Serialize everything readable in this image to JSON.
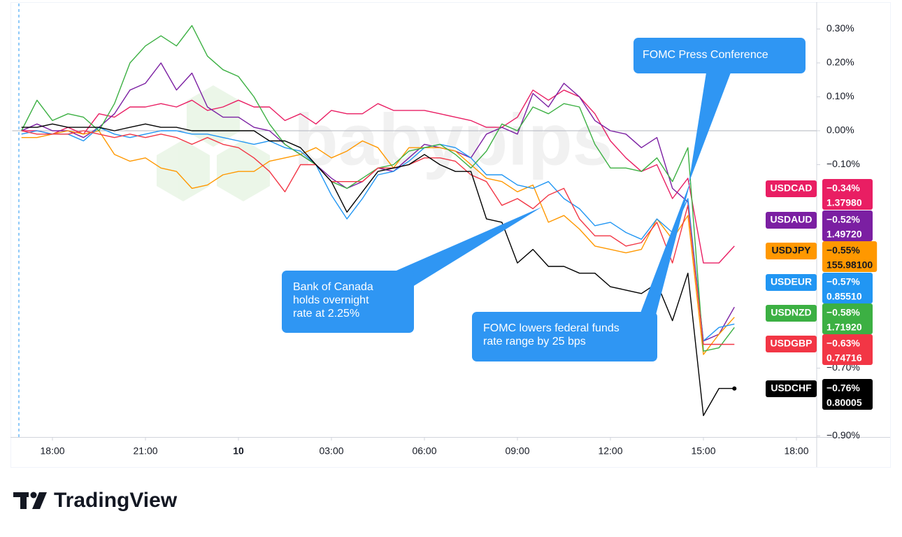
{
  "chart_data": {
    "type": "line",
    "watermark": "babypips",
    "brand": "TradingView",
    "x": [
      17,
      17.5,
      18,
      18.5,
      19,
      19.5,
      20,
      20.5,
      21,
      21.5,
      22,
      22.5,
      23,
      23.5,
      24,
      24.5,
      25,
      25.5,
      26,
      26.5,
      27,
      27.5,
      28,
      28.5,
      29,
      29.5,
      30,
      30.5,
      31,
      31.5,
      32,
      32.5,
      33,
      33.5,
      34,
      34.5,
      35,
      35.5,
      36,
      36.5,
      37,
      37.5,
      38,
      38.5,
      39,
      39.5,
      40
    ],
    "xlim": [
      16.7,
      42.65
    ],
    "xticks": [
      {
        "value": 18,
        "label": "18:00"
      },
      {
        "value": 21,
        "label": "21:00"
      },
      {
        "value": 24,
        "label": "10"
      },
      {
        "value": 27,
        "label": "03:00"
      },
      {
        "value": 30,
        "label": "06:00"
      },
      {
        "value": 33,
        "label": "09:00"
      },
      {
        "value": 36,
        "label": "12:00"
      },
      {
        "value": 39,
        "label": "15:00"
      },
      {
        "value": 42,
        "label": "18:00"
      }
    ],
    "ylim": [
      -0.9,
      0.37
    ],
    "yticks": [
      {
        "value": 0.3,
        "label": "0.30%"
      },
      {
        "value": 0.2,
        "label": "0.20%"
      },
      {
        "value": 0.1,
        "label": "0.10%"
      },
      {
        "value": 0,
        "label": "0.00%"
      },
      {
        "value": -0.1,
        "label": "−0.10%"
      },
      {
        "value": -0.7,
        "label": "−0.70%"
      },
      {
        "value": -0.9,
        "label": "−0.90%"
      }
    ],
    "baseline": 0,
    "series": [
      {
        "name": "USDCAD",
        "color": "#e91e63",
        "last_value_label": "−0.34%",
        "last_price": "1.37980",
        "values": [
          0,
          0,
          -0.01,
          0.01,
          -0.01,
          0.05,
          0.04,
          0.07,
          0.07,
          0.08,
          0.07,
          0.09,
          0.06,
          0.07,
          0.09,
          0.07,
          0.07,
          0.03,
          0.05,
          0.02,
          0.06,
          0.05,
          0.05,
          0.08,
          0.06,
          0.06,
          0.06,
          0.05,
          0.04,
          0.03,
          0.01,
          0.01,
          0.04,
          0.12,
          0.09,
          0.12,
          0.1,
          0.05,
          -0.03,
          -0.08,
          -0.12,
          -0.1,
          -0.2,
          -0.14,
          -0.39,
          -0.39,
          -0.34
        ]
      },
      {
        "name": "USDAUD",
        "color": "#7b1fa2",
        "last_value_label": "−0.52%",
        "last_price": "1.49720",
        "values": [
          0,
          0.02,
          0,
          0,
          -0.02,
          0.01,
          0.05,
          0.12,
          0.14,
          0.2,
          0.12,
          0.17,
          0.07,
          0.04,
          0.04,
          0.01,
          0,
          -0.04,
          -0.07,
          -0.1,
          -0.14,
          -0.17,
          -0.15,
          -0.11,
          -0.12,
          -0.08,
          -0.04,
          -0.05,
          -0.06,
          -0.08,
          -0.01,
          0.01,
          -0.01,
          0.11,
          0.07,
          0.14,
          0.1,
          0.03,
          0,
          -0.01,
          -0.05,
          -0.02,
          -0.17,
          -0.21,
          -0.62,
          -0.6,
          -0.52
        ]
      },
      {
        "name": "USDJPY",
        "color": "#ff9800",
        "last_value_label": "−0.55%",
        "last_price": "155.98100",
        "values": [
          -0.02,
          -0.02,
          -0.01,
          0,
          -0.01,
          0,
          -0.07,
          -0.09,
          -0.08,
          -0.11,
          -0.12,
          -0.17,
          -0.16,
          -0.13,
          -0.12,
          -0.12,
          -0.09,
          -0.08,
          -0.07,
          -0.05,
          -0.08,
          -0.06,
          -0.03,
          -0.05,
          -0.11,
          -0.05,
          -0.05,
          -0.05,
          -0.06,
          -0.1,
          -0.14,
          -0.15,
          -0.18,
          -0.16,
          -0.27,
          -0.25,
          -0.29,
          -0.34,
          -0.35,
          -0.36,
          -0.35,
          -0.26,
          -0.32,
          -0.25,
          -0.66,
          -0.6,
          -0.55
        ]
      },
      {
        "name": "USDEUR",
        "color": "#2196f3",
        "last_value_label": "−0.57%",
        "last_price": "0.85510",
        "values": [
          -0.01,
          0,
          -0.01,
          -0.01,
          -0.03,
          0.01,
          -0.01,
          -0.02,
          -0.01,
          0,
          0,
          -0.01,
          -0.01,
          -0.02,
          -0.03,
          -0.04,
          -0.03,
          -0.05,
          -0.06,
          -0.1,
          -0.19,
          -0.26,
          -0.2,
          -0.13,
          -0.12,
          -0.09,
          -0.05,
          -0.04,
          -0.05,
          -0.08,
          -0.13,
          -0.13,
          -0.16,
          -0.17,
          -0.15,
          -0.2,
          -0.23,
          -0.28,
          -0.27,
          -0.3,
          -0.32,
          -0.26,
          -0.3,
          -0.2,
          -0.62,
          -0.58,
          -0.57
        ]
      },
      {
        "name": "USDNZD",
        "color": "#3cb043",
        "last_value_label": "−0.58%",
        "last_price": "1.71920",
        "values": [
          0,
          0.09,
          0.03,
          0.05,
          0.04,
          0,
          0.08,
          0.2,
          0.25,
          0.28,
          0.25,
          0.31,
          0.22,
          0.18,
          0.16,
          0.1,
          0.02,
          -0.04,
          -0.07,
          -0.1,
          -0.15,
          -0.17,
          -0.14,
          -0.11,
          -0.1,
          -0.06,
          -0.05,
          -0.04,
          -0.07,
          -0.11,
          -0.06,
          0.02,
          0,
          0.07,
          0.05,
          0.08,
          0.07,
          -0.04,
          -0.11,
          -0.11,
          -0.12,
          -0.08,
          -0.15,
          -0.05,
          -0.65,
          -0.64,
          -0.58
        ]
      },
      {
        "name": "USDGBP",
        "color": "#f23645",
        "last_value_label": "−0.63%",
        "last_price": "0.74716",
        "values": [
          0,
          -0.01,
          -0.01,
          -0.01,
          0,
          -0.01,
          -0.02,
          -0.01,
          -0.02,
          -0.01,
          -0.02,
          -0.04,
          -0.02,
          -0.04,
          -0.05,
          -0.08,
          -0.12,
          -0.18,
          -0.1,
          -0.1,
          -0.15,
          -0.15,
          -0.15,
          -0.11,
          -0.11,
          -0.1,
          -0.08,
          -0.08,
          -0.09,
          -0.13,
          -0.15,
          -0.22,
          -0.2,
          -0.23,
          -0.19,
          -0.17,
          -0.26,
          -0.31,
          -0.31,
          -0.34,
          -0.33,
          -0.27,
          -0.39,
          -0.22,
          -0.63,
          -0.63,
          -0.63
        ]
      },
      {
        "name": "USDCHF",
        "color": "#000000",
        "last_value_label": "−0.76%",
        "last_price": "0.80005",
        "end_marker": true,
        "values": [
          0.01,
          0.01,
          0.02,
          0.01,
          0.01,
          0.01,
          0,
          0.01,
          0.02,
          0.01,
          0.01,
          0,
          0,
          0,
          0,
          0,
          -0.03,
          -0.03,
          -0.05,
          -0.1,
          -0.15,
          -0.24,
          -0.18,
          -0.12,
          -0.11,
          -0.1,
          -0.07,
          -0.1,
          -0.12,
          -0.12,
          -0.26,
          -0.27,
          -0.39,
          -0.35,
          -0.4,
          -0.4,
          -0.42,
          -0.42,
          -0.46,
          -0.47,
          -0.48,
          -0.45,
          -0.56,
          -0.42,
          -0.84,
          -0.76,
          -0.76
        ]
      }
    ],
    "annotations": [
      {
        "lines": [
          "FOMC Press Conference"
        ]
      },
      {
        "lines": [
          "Bank of Canada",
          "holds overnight",
          "rate at 2.25%"
        ]
      },
      {
        "lines": [
          "FOMC lowers federal funds",
          "rate range by 25 bps"
        ]
      }
    ]
  }
}
